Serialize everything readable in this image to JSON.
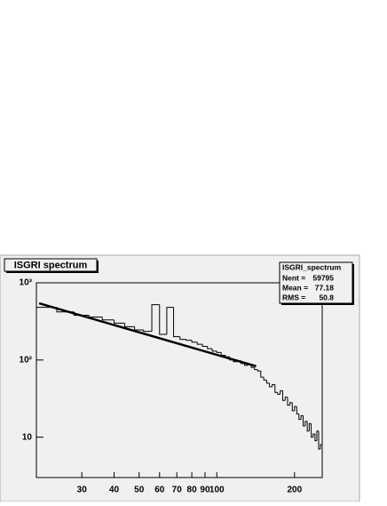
{
  "chart_data": {
    "type": "histogram",
    "title": "ISGRI spectrum",
    "bins": [
      20,
      24,
      28,
      32,
      36,
      40,
      44,
      48,
      52,
      56,
      60,
      64,
      68,
      72,
      76,
      80,
      84,
      88,
      92,
      96,
      100,
      104,
      108,
      112,
      116,
      120,
      124,
      128,
      132,
      136,
      140,
      144,
      148,
      152,
      156,
      160,
      164,
      168,
      172,
      176,
      180,
      184,
      188,
      192,
      196,
      200,
      204,
      208,
      212,
      216,
      220,
      224,
      228,
      232,
      236,
      240,
      244,
      248,
      252,
      256
    ],
    "values": [
      480,
      420,
      380,
      360,
      330,
      300,
      270,
      245,
      235,
      520,
      215,
      480,
      200,
      185,
      180,
      170,
      160,
      150,
      140,
      130,
      125,
      115,
      110,
      100,
      95,
      98,
      90,
      85,
      88,
      80,
      75,
      72,
      60,
      55,
      50,
      45,
      48,
      38,
      36,
      40,
      30,
      33,
      26,
      28,
      22,
      25,
      20,
      17,
      19,
      14,
      16,
      12,
      15,
      10,
      11,
      9,
      12,
      7,
      8
    ],
    "color": "#000000",
    "fit": {
      "x": [
        20.5,
        142
      ],
      "values": [
        542,
        83
      ],
      "color": "#000000"
    },
    "xlim": [
      20,
      256
    ],
    "ylim": [
      3,
      1000
    ],
    "xlog": true,
    "ylog": true,
    "xticks": [
      30,
      40,
      50,
      60,
      70,
      80,
      90,
      100,
      200
    ],
    "yticks": [
      {
        "value": 10,
        "label": "10"
      },
      {
        "value": 100,
        "label": "10²"
      },
      {
        "value": 1000,
        "label": "10³"
      }
    ],
    "stats": {
      "title": "ISGRI_spectrum",
      "rows": [
        {
          "label": "Nent =",
          "value": 59795
        },
        {
          "label": "Mean =",
          "value": 77.18
        },
        {
          "label": "RMS =",
          "value": 50.8
        }
      ]
    }
  }
}
